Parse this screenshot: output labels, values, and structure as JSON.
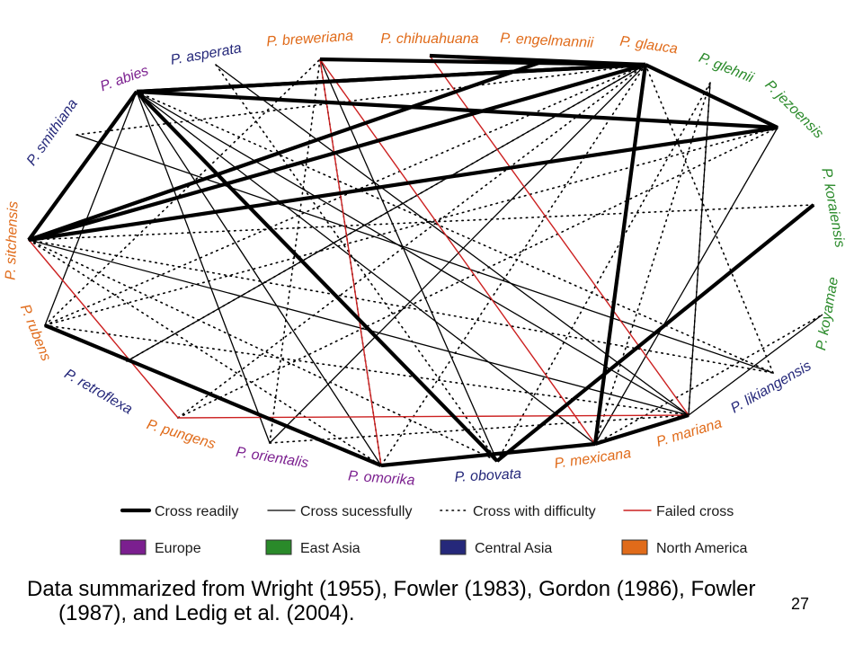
{
  "colors": {
    "europe": "#7b1f8f",
    "east_asia": "#2a8a2a",
    "central_asia": "#25287a",
    "north_america": "#e06b1a",
    "failed": "#cc2020",
    "edge": "#000000"
  },
  "species": [
    {
      "id": "abies",
      "label": "P. abies",
      "region": "europe"
    },
    {
      "id": "asperata",
      "label": "P. asperata",
      "region": "central_asia"
    },
    {
      "id": "breweriana",
      "label": "P. breweriana",
      "region": "north_america"
    },
    {
      "id": "chihuahuana",
      "label": "P. chihuahuana",
      "region": "north_america"
    },
    {
      "id": "engelmannii",
      "label": "P. engelmannii",
      "region": "north_america"
    },
    {
      "id": "glauca",
      "label": "P. glauca",
      "region": "north_america"
    },
    {
      "id": "glehnii",
      "label": "P. glehnii",
      "region": "east_asia"
    },
    {
      "id": "jezoensis",
      "label": "P. jezoensis",
      "region": "east_asia"
    },
    {
      "id": "koraiensis",
      "label": "P. koraiensis",
      "region": "east_asia"
    },
    {
      "id": "koyamae",
      "label": "P. koyamae",
      "region": "east_asia"
    },
    {
      "id": "likiangensis",
      "label": "P. likiangensis",
      "region": "central_asia"
    },
    {
      "id": "mariana",
      "label": "P. mariana",
      "region": "north_america"
    },
    {
      "id": "mexicana",
      "label": "P. mexicana",
      "region": "north_america"
    },
    {
      "id": "obovata",
      "label": "P. obovata",
      "region": "central_asia"
    },
    {
      "id": "omorika",
      "label": "P. omorika",
      "region": "europe"
    },
    {
      "id": "orientalis",
      "label": "P. orientalis",
      "region": "europe"
    },
    {
      "id": "pungens",
      "label": "P. pungens",
      "region": "north_america"
    },
    {
      "id": "retroflexa",
      "label": "P. retroflexa",
      "region": "central_asia"
    },
    {
      "id": "rubens",
      "label": "P. rubens",
      "region": "north_america"
    },
    {
      "id": "sitchensis",
      "label": "P. sitchensis",
      "region": "north_america"
    },
    {
      "id": "smithiana",
      "label": "P. smithiana",
      "region": "central_asia"
    }
  ],
  "edges": [
    {
      "a": "abies",
      "b": "glauca",
      "type": "readily"
    },
    {
      "a": "abies",
      "b": "jezoensis",
      "type": "readily"
    },
    {
      "a": "abies",
      "b": "obovata",
      "type": "readily"
    },
    {
      "a": "sitchensis",
      "b": "glauca",
      "type": "readily"
    },
    {
      "a": "sitchensis",
      "b": "jezoensis",
      "type": "readily"
    },
    {
      "a": "sitchensis",
      "b": "engelmannii",
      "type": "readily"
    },
    {
      "a": "sitchensis",
      "b": "abies",
      "type": "readily"
    },
    {
      "a": "breweriana",
      "b": "glauca",
      "type": "readily"
    },
    {
      "a": "chihuahuana",
      "b": "glauca",
      "type": "readily"
    },
    {
      "a": "glauca",
      "b": "jezoensis",
      "type": "readily"
    },
    {
      "a": "glauca",
      "b": "mexicana",
      "type": "readily"
    },
    {
      "a": "glauca",
      "b": "abies",
      "type": "readily"
    },
    {
      "a": "rubens",
      "b": "omorika",
      "type": "readily"
    },
    {
      "a": "omorika",
      "b": "mexicana",
      "type": "readily"
    },
    {
      "a": "mexicana",
      "b": "mariana",
      "type": "readily"
    },
    {
      "a": "obovata",
      "b": "koraiensis",
      "type": "readily"
    },
    {
      "a": "abies",
      "b": "sitchensis",
      "type": "successfully"
    },
    {
      "a": "abies",
      "b": "mexicana",
      "type": "successfully"
    },
    {
      "a": "abies",
      "b": "omorika",
      "type": "successfully"
    },
    {
      "a": "abies",
      "b": "orientalis",
      "type": "successfully"
    },
    {
      "a": "abies",
      "b": "rubens",
      "type": "successfully"
    },
    {
      "a": "abies",
      "b": "mariana",
      "type": "successfully"
    },
    {
      "a": "asperata",
      "b": "mariana",
      "type": "successfully"
    },
    {
      "a": "smithiana",
      "b": "likiangensis",
      "type": "successfully"
    },
    {
      "a": "sitchensis",
      "b": "mariana",
      "type": "successfully"
    },
    {
      "a": "glauca",
      "b": "orientalis",
      "type": "successfully"
    },
    {
      "a": "glauca",
      "b": "retroflexa",
      "type": "successfully"
    },
    {
      "a": "glehnii",
      "b": "mariana",
      "type": "successfully"
    },
    {
      "a": "mariana",
      "b": "koyamae",
      "type": "successfully"
    },
    {
      "a": "obovata",
      "b": "breweriana",
      "type": "successfully"
    },
    {
      "a": "jezoensis",
      "b": "mexicana",
      "type": "successfully"
    },
    {
      "a": "sitchensis",
      "b": "omorika",
      "type": "difficulty"
    },
    {
      "a": "sitchensis",
      "b": "likiangensis",
      "type": "difficulty"
    },
    {
      "a": "sitchensis",
      "b": "obovata",
      "type": "difficulty"
    },
    {
      "a": "rubens",
      "b": "glauca",
      "type": "difficulty"
    },
    {
      "a": "rubens",
      "b": "breweriana",
      "type": "difficulty"
    },
    {
      "a": "rubens",
      "b": "mariana",
      "type": "difficulty"
    },
    {
      "a": "rubens",
      "b": "jezoensis",
      "type": "difficulty"
    },
    {
      "a": "retroflexa",
      "b": "glauca",
      "type": "difficulty"
    },
    {
      "a": "pungens",
      "b": "glauca",
      "type": "difficulty"
    },
    {
      "a": "pungens",
      "b": "jezoensis",
      "type": "difficulty"
    },
    {
      "a": "orientalis",
      "b": "breweriana",
      "type": "difficulty"
    },
    {
      "a": "orientalis",
      "b": "mariana",
      "type": "difficulty"
    },
    {
      "a": "omorika",
      "b": "glauca",
      "type": "difficulty"
    },
    {
      "a": "omorika",
      "b": "breweriana",
      "type": "difficulty"
    },
    {
      "a": "obovata",
      "b": "glehnii",
      "type": "difficulty"
    },
    {
      "a": "mexicana",
      "b": "glehnii",
      "type": "difficulty"
    },
    {
      "a": "mariana",
      "b": "glehnii",
      "type": "difficulty"
    },
    {
      "a": "likiangensis",
      "b": "glauca",
      "type": "difficulty"
    },
    {
      "a": "koraiensis",
      "b": "sitchensis",
      "type": "difficulty"
    },
    {
      "a": "smithiana",
      "b": "glauca",
      "type": "difficulty"
    },
    {
      "a": "abies",
      "b": "likiangensis",
      "type": "difficulty"
    },
    {
      "a": "asperata",
      "b": "obovata",
      "type": "difficulty"
    },
    {
      "a": "mexicana",
      "b": "koyamae",
      "type": "difficulty"
    },
    {
      "a": "breweriana",
      "b": "mexicana",
      "type": "failed"
    },
    {
      "a": "breweriana",
      "b": "omorika",
      "type": "failed"
    },
    {
      "a": "chihuahuana",
      "b": "mariana",
      "type": "failed"
    },
    {
      "a": "breweriana",
      "b": "engelmannii",
      "type": "failed"
    },
    {
      "a": "sitchensis",
      "b": "pungens",
      "type": "failed"
    },
    {
      "a": "pungens",
      "b": "mariana",
      "type": "failed"
    }
  ],
  "legend": {
    "edge_types": [
      {
        "type": "readily",
        "label": "Cross readily"
      },
      {
        "type": "successfully",
        "label": "Cross sucessfully"
      },
      {
        "type": "difficulty",
        "label": "Cross with difficulty"
      },
      {
        "type": "failed",
        "label": "Failed cross"
      }
    ],
    "regions": [
      {
        "region": "europe",
        "label": "Europe"
      },
      {
        "region": "east_asia",
        "label": "East Asia"
      },
      {
        "region": "central_asia",
        "label": "Central Asia"
      },
      {
        "region": "north_america",
        "label": "North America"
      }
    ]
  },
  "caption": {
    "line1": "Data summarized from Wright (1955), Fowler (1983), Gordon (1986), Fowler",
    "line2": "(1987), and Ledig et al. (2004)."
  },
  "page_number": "27"
}
